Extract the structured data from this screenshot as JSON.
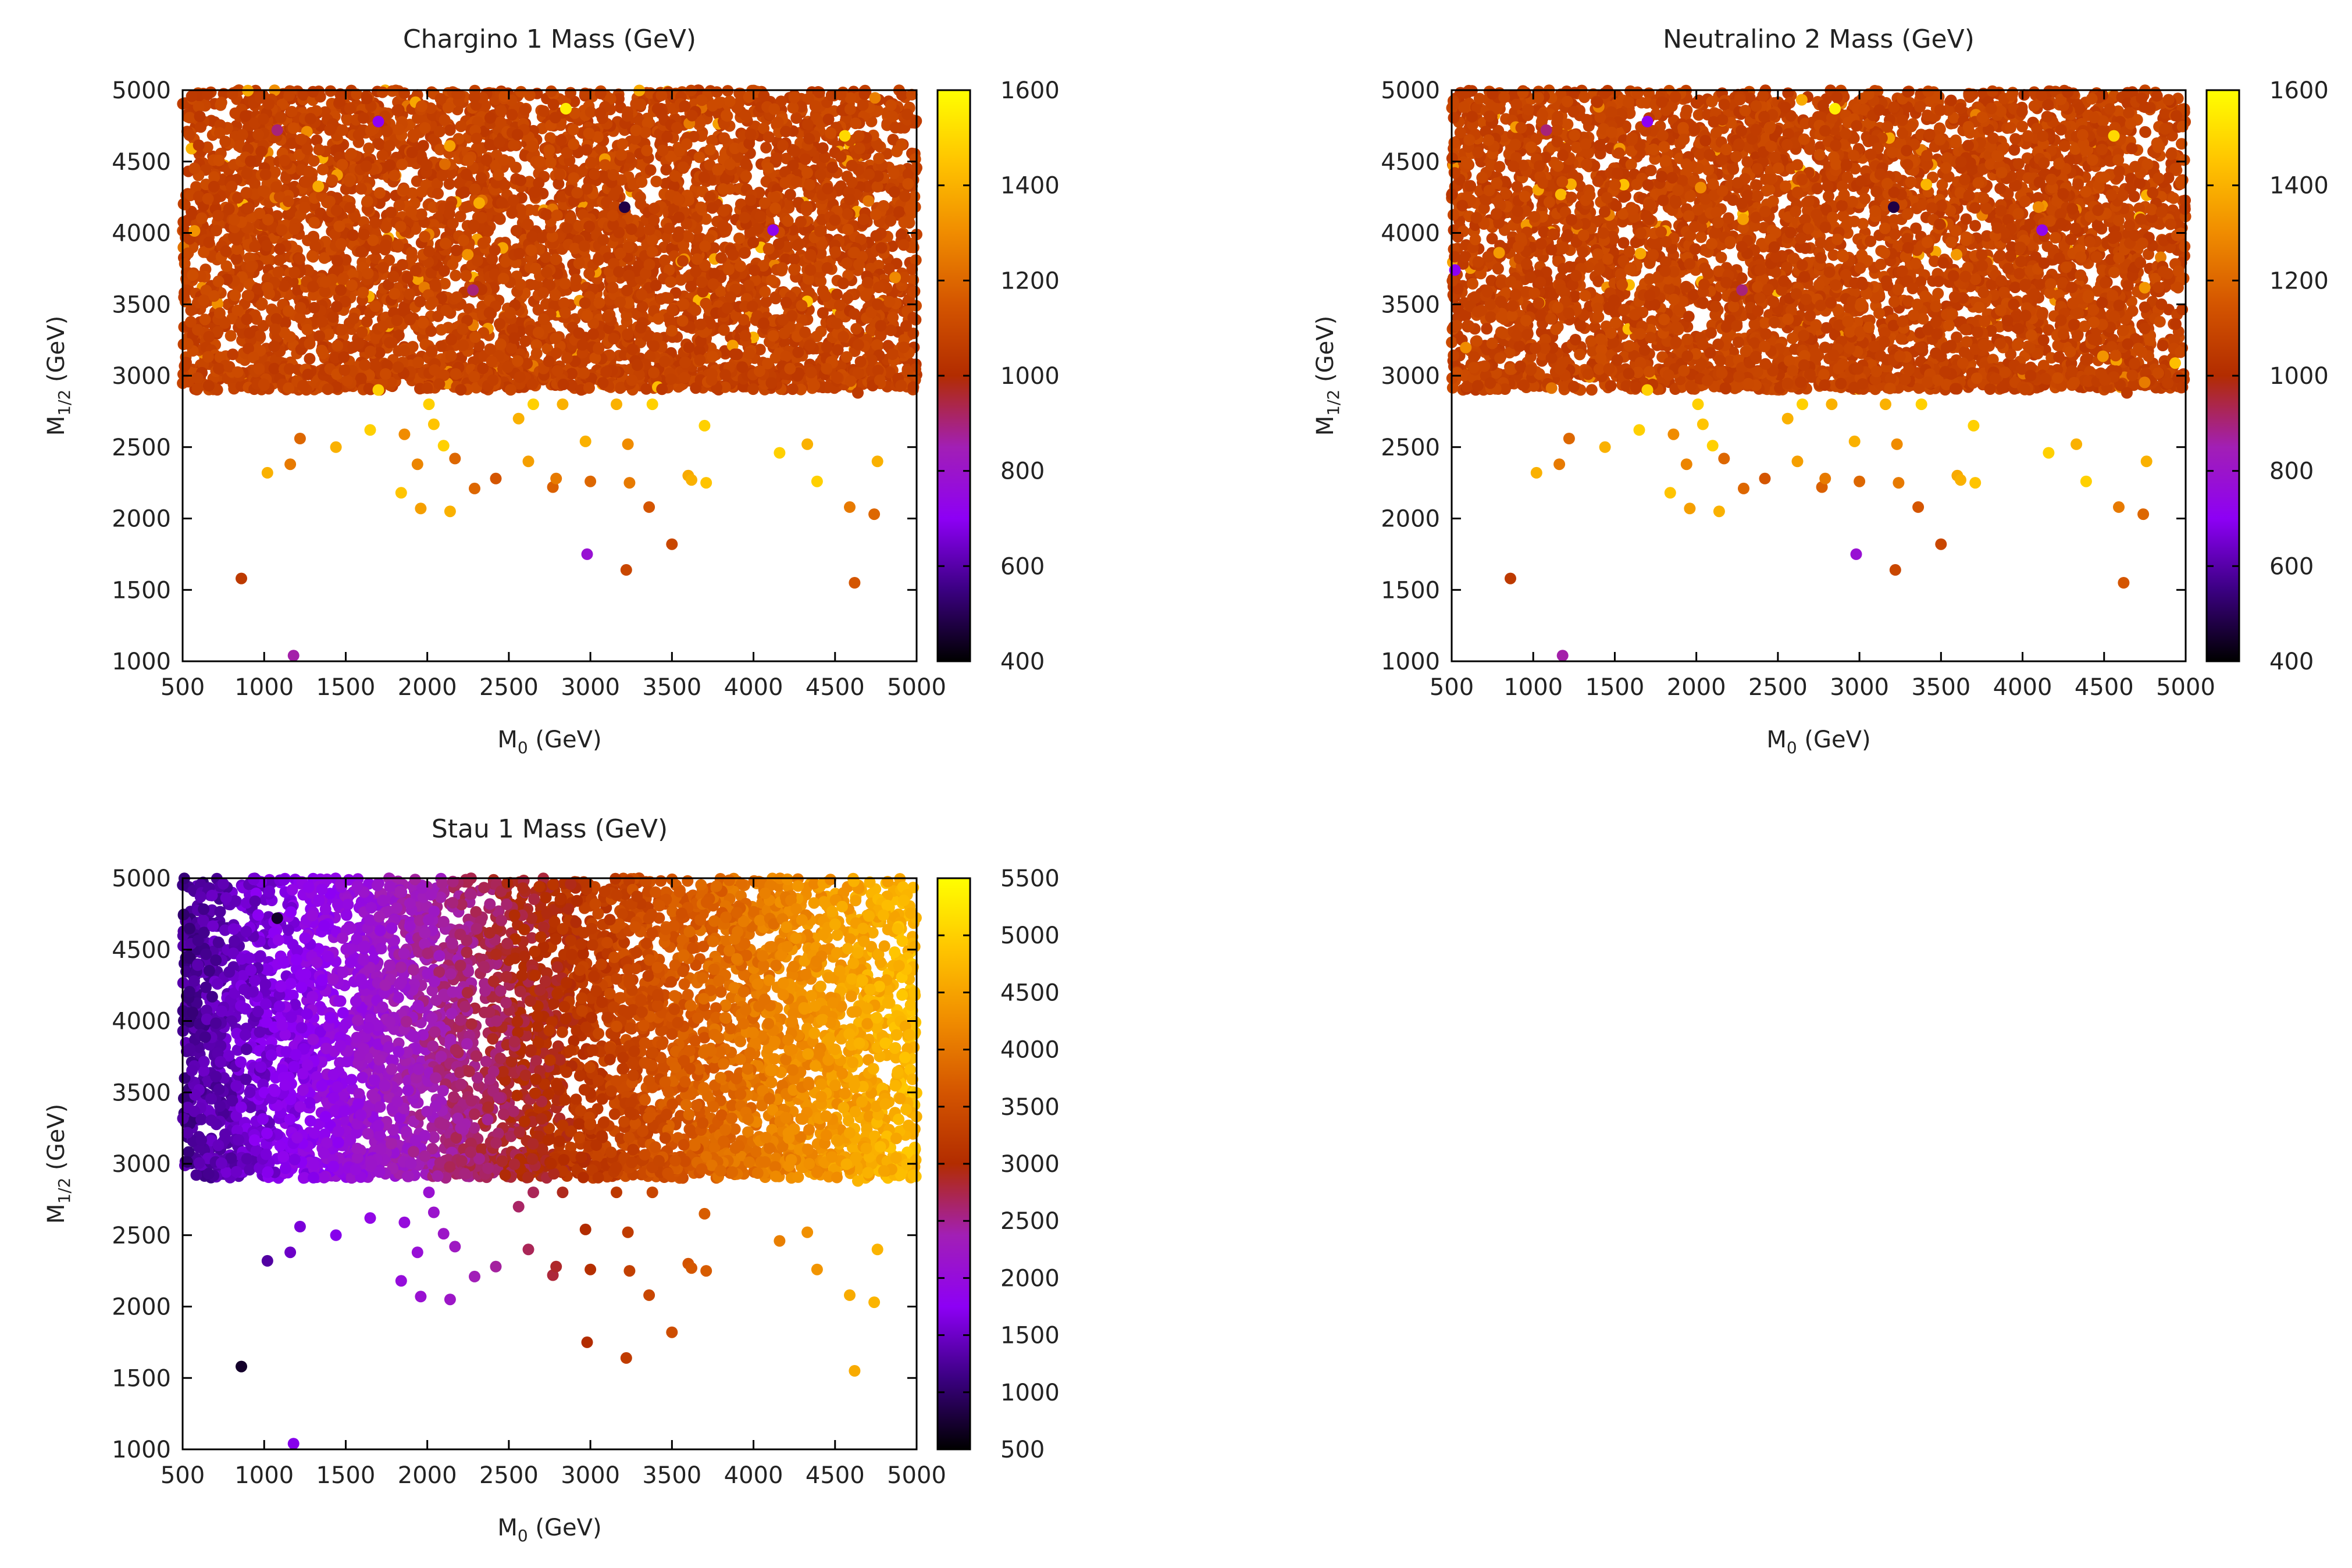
{
  "chart_data": [
    {
      "type": "scatter",
      "title": "Chargino 1 Mass (GeV)",
      "xlabel": {
        "main": "M",
        "sub": "0",
        "suffix": " (GeV)"
      },
      "ylabel": {
        "main": "M",
        "sub": "1/2",
        "suffix": " (GeV)"
      },
      "xlim": [
        500,
        5000
      ],
      "ylim": [
        1000,
        5000
      ],
      "xticks": [
        "500",
        "1000",
        "1500",
        "2000",
        "2500",
        "3000",
        "3500",
        "4000",
        "4500",
        "5000"
      ],
      "yticks": [
        "1000",
        "1500",
        "2000",
        "2500",
        "3000",
        "3500",
        "4000",
        "4500",
        "5000"
      ],
      "colorbar": {
        "range": [
          400,
          1600
        ],
        "ticks": [
          "400",
          "600",
          "800",
          "1000",
          "1200",
          "1400",
          "1600"
        ]
      },
      "dense_region": {
        "x": [
          500,
          5000
        ],
        "y": [
          2900,
          5000
        ],
        "value_center": 1080,
        "value_spread": 40
      },
      "sparse_points": [
        [
          860,
          1580,
          1050
        ],
        [
          1020,
          2320,
          1400
        ],
        [
          1160,
          2380,
          1250
        ],
        [
          1220,
          2560,
          1200
        ],
        [
          1180,
          1040,
          860
        ],
        [
          1440,
          2500,
          1400
        ],
        [
          1650,
          2620,
          1480
        ],
        [
          1700,
          2900,
          1480
        ],
        [
          1840,
          2180,
          1450
        ],
        [
          1860,
          2590,
          1300
        ],
        [
          1940,
          2380,
          1280
        ],
        [
          1960,
          2070,
          1350
        ],
        [
          2010,
          2800,
          1480
        ],
        [
          2040,
          2660,
          1450
        ],
        [
          2100,
          2510,
          1480
        ],
        [
          2140,
          2050,
          1400
        ],
        [
          2170,
          2420,
          1200
        ],
        [
          2290,
          2210,
          1200
        ],
        [
          2420,
          2280,
          1150
        ],
        [
          2560,
          2700,
          1400
        ],
        [
          2620,
          2400,
          1350
        ],
        [
          2650,
          2800,
          1480
        ],
        [
          2770,
          2220,
          1180
        ],
        [
          2790,
          2280,
          1250
        ],
        [
          2830,
          2800,
          1400
        ],
        [
          2970,
          2540,
          1400
        ],
        [
          2980,
          1750,
          780
        ],
        [
          3000,
          2260,
          1200
        ],
        [
          3160,
          2800,
          1400
        ],
        [
          3220,
          1640,
          1100
        ],
        [
          3230,
          2520,
          1300
        ],
        [
          3240,
          2250,
          1250
        ],
        [
          3360,
          2080,
          1150
        ],
        [
          3380,
          2800,
          1480
        ],
        [
          3500,
          1820,
          1100
        ],
        [
          3600,
          2300,
          1380
        ],
        [
          3620,
          2270,
          1400
        ],
        [
          3700,
          2650,
          1480
        ],
        [
          3710,
          2250,
          1450
        ],
        [
          4160,
          2460,
          1480
        ],
        [
          4330,
          2520,
          1400
        ],
        [
          4390,
          2260,
          1480
        ],
        [
          4590,
          2080,
          1250
        ],
        [
          4620,
          1550,
          1150
        ],
        [
          4740,
          2030,
          1200
        ],
        [
          4760,
          2400,
          1400
        ],
        [
          1080,
          4720,
          900
        ],
        [
          1700,
          4780,
          700
        ],
        [
          2850,
          4870,
          1560
        ],
        [
          3210,
          4180,
          480
        ],
        [
          4120,
          4020,
          720
        ],
        [
          2280,
          3600,
          900
        ],
        [
          4560,
          4680,
          1500
        ],
        [
          4640,
          2880,
          1050
        ],
        [
          4980,
          2920,
          1050
        ],
        [
          660,
          2930,
          1050
        ]
      ]
    },
    {
      "type": "scatter",
      "title": "Neutralino 2 Mass (GeV)",
      "xlabel": {
        "main": "M",
        "sub": "0",
        "suffix": " (GeV)"
      },
      "ylabel": {
        "main": "M",
        "sub": "1/2",
        "suffix": " (GeV)"
      },
      "xlim": [
        500,
        5000
      ],
      "ylim": [
        1000,
        5000
      ],
      "xticks": [
        "500",
        "1000",
        "1500",
        "2000",
        "2500",
        "3000",
        "3500",
        "4000",
        "4500",
        "5000"
      ],
      "yticks": [
        "1000",
        "1500",
        "2000",
        "2500",
        "3000",
        "3500",
        "4000",
        "4500",
        "5000"
      ],
      "colorbar": {
        "range": [
          400,
          1600
        ],
        "ticks": [
          "400",
          "600",
          "800",
          "1000",
          "1200",
          "1400",
          "1600"
        ]
      },
      "dense_region": {
        "x": [
          500,
          5000
        ],
        "y": [
          2900,
          5000
        ],
        "value_center": 1080,
        "value_spread": 40
      },
      "sparse_points": [
        [
          860,
          1580,
          1050
        ],
        [
          1020,
          2320,
          1400
        ],
        [
          1160,
          2380,
          1250
        ],
        [
          1220,
          2560,
          1200
        ],
        [
          1180,
          1040,
          860
        ],
        [
          1440,
          2500,
          1400
        ],
        [
          1650,
          2620,
          1480
        ],
        [
          1700,
          2900,
          1480
        ],
        [
          1840,
          2180,
          1450
        ],
        [
          1860,
          2590,
          1300
        ],
        [
          1940,
          2380,
          1280
        ],
        [
          1960,
          2070,
          1350
        ],
        [
          2010,
          2800,
          1480
        ],
        [
          2040,
          2660,
          1450
        ],
        [
          2100,
          2510,
          1480
        ],
        [
          2140,
          2050,
          1400
        ],
        [
          2170,
          2420,
          1200
        ],
        [
          2290,
          2210,
          1200
        ],
        [
          2420,
          2280,
          1150
        ],
        [
          2560,
          2700,
          1400
        ],
        [
          2620,
          2400,
          1350
        ],
        [
          2650,
          2800,
          1480
        ],
        [
          2770,
          2220,
          1180
        ],
        [
          2790,
          2280,
          1250
        ],
        [
          2830,
          2800,
          1400
        ],
        [
          2970,
          2540,
          1400
        ],
        [
          2980,
          1750,
          780
        ],
        [
          3000,
          2260,
          1200
        ],
        [
          3160,
          2800,
          1400
        ],
        [
          3220,
          1640,
          1100
        ],
        [
          3230,
          2520,
          1300
        ],
        [
          3240,
          2250,
          1250
        ],
        [
          3360,
          2080,
          1150
        ],
        [
          3380,
          2800,
          1480
        ],
        [
          3500,
          1820,
          1100
        ],
        [
          3600,
          2300,
          1380
        ],
        [
          3620,
          2270,
          1400
        ],
        [
          3700,
          2650,
          1480
        ],
        [
          3710,
          2250,
          1450
        ],
        [
          4160,
          2460,
          1480
        ],
        [
          4330,
          2520,
          1400
        ],
        [
          4390,
          2260,
          1480
        ],
        [
          4590,
          2080,
          1250
        ],
        [
          4620,
          1550,
          1150
        ],
        [
          4740,
          2030,
          1200
        ],
        [
          4760,
          2400,
          1400
        ],
        [
          1080,
          4720,
          900
        ],
        [
          1700,
          4780,
          700
        ],
        [
          2850,
          4870,
          1560
        ],
        [
          3210,
          4180,
          480
        ],
        [
          4120,
          4020,
          720
        ],
        [
          2280,
          3600,
          900
        ],
        [
          4560,
          4680,
          1500
        ],
        [
          4640,
          2880,
          1050
        ],
        [
          4980,
          2920,
          1050
        ],
        [
          660,
          2930,
          1050
        ],
        [
          520,
          3740,
          700
        ]
      ]
    },
    {
      "type": "scatter",
      "title": "Stau 1 Mass (GeV)",
      "xlabel": {
        "main": "M",
        "sub": "0",
        "suffix": " (GeV)"
      },
      "ylabel": {
        "main": "M",
        "sub": "1/2",
        "suffix": " (GeV)"
      },
      "xlim": [
        500,
        5000
      ],
      "ylim": [
        1000,
        5000
      ],
      "xticks": [
        "500",
        "1000",
        "1500",
        "2000",
        "2500",
        "3000",
        "3500",
        "4000",
        "4500",
        "5000"
      ],
      "yticks": [
        "1000",
        "1500",
        "2000",
        "2500",
        "3000",
        "3500",
        "4000",
        "4500",
        "5000"
      ],
      "colorbar": {
        "range": [
          500,
          5500
        ],
        "ticks": [
          "500",
          "1000",
          "1500",
          "2000",
          "2500",
          "3000",
          "3500",
          "4000",
          "4500",
          "5000",
          "5500"
        ]
      },
      "dense_region": {
        "x": [
          500,
          5000
        ],
        "y": [
          2900,
          5000
        ],
        "value_model": "linear_in_x",
        "value_at_xmin": 1200,
        "value_at_xmax": 4800,
        "value_spread": 200
      },
      "sparse_points": [
        [
          860,
          1580,
          700
        ],
        [
          1020,
          2320,
          1300
        ],
        [
          1160,
          2380,
          1500
        ],
        [
          1220,
          2560,
          1600
        ],
        [
          1180,
          1040,
          1700
        ],
        [
          1440,
          2500,
          1700
        ],
        [
          1650,
          2620,
          1900
        ],
        [
          1840,
          2180,
          2000
        ],
        [
          1860,
          2590,
          2000
        ],
        [
          1940,
          2380,
          2050
        ],
        [
          1960,
          2070,
          2100
        ],
        [
          2010,
          2800,
          2100
        ],
        [
          2040,
          2660,
          2150
        ],
        [
          2100,
          2510,
          2200
        ],
        [
          2140,
          2050,
          2200
        ],
        [
          2170,
          2420,
          2250
        ],
        [
          2290,
          2210,
          2350
        ],
        [
          2420,
          2280,
          2450
        ],
        [
          2560,
          2700,
          2650
        ],
        [
          2620,
          2400,
          2700
        ],
        [
          2650,
          2800,
          2700
        ],
        [
          2770,
          2220,
          2800
        ],
        [
          2790,
          2280,
          2850
        ],
        [
          2830,
          2800,
          2900
        ],
        [
          2970,
          2540,
          3000
        ],
        [
          2980,
          1750,
          3000
        ],
        [
          3000,
          2260,
          3050
        ],
        [
          3160,
          2800,
          3200
        ],
        [
          3220,
          1640,
          3250
        ],
        [
          3230,
          2520,
          3250
        ],
        [
          3240,
          2250,
          3300
        ],
        [
          3360,
          2080,
          3400
        ],
        [
          3380,
          2800,
          3400
        ],
        [
          3500,
          1820,
          3500
        ],
        [
          3600,
          2300,
          3600
        ],
        [
          3620,
          2270,
          3650
        ],
        [
          3700,
          2650,
          3700
        ],
        [
          3710,
          2250,
          3700
        ],
        [
          4160,
          2460,
          4100
        ],
        [
          4330,
          2520,
          4300
        ],
        [
          4390,
          2260,
          4350
        ],
        [
          4590,
          2080,
          4600
        ],
        [
          4620,
          1550,
          4600
        ],
        [
          4740,
          2030,
          4700
        ],
        [
          4760,
          2400,
          4700
        ],
        [
          1080,
          4720,
          700
        ],
        [
          4640,
          2880,
          4700
        ],
        [
          4980,
          2920,
          4800
        ],
        [
          660,
          2930,
          1200
        ]
      ]
    }
  ],
  "colormap": [
    "#000000",
    "#3b0082",
    "#8d00f5",
    "#a21fb5",
    "#b22c00",
    "#d45500",
    "#f08c00",
    "#ffc400",
    "#ffff00"
  ]
}
